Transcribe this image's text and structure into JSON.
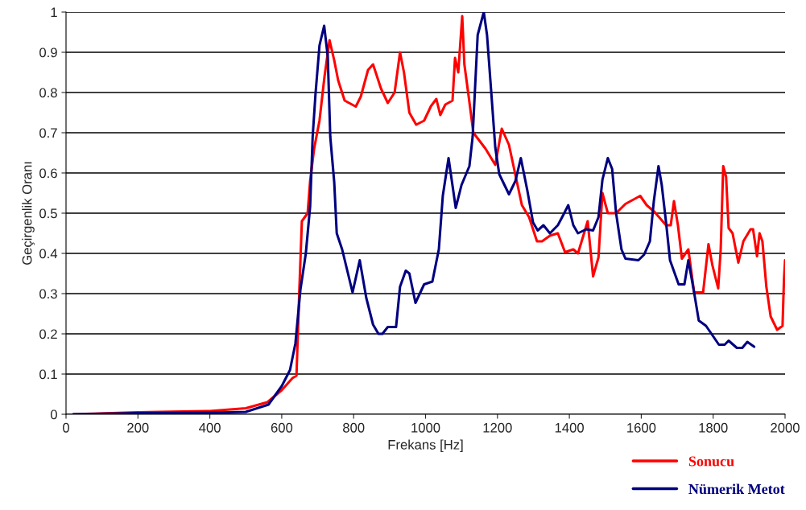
{
  "chart_data": {
    "type": "line",
    "xlabel": "Frekans [Hz]",
    "ylabel": "Geçirgenlik Oranı",
    "xlim": [
      0,
      2000
    ],
    "ylim": [
      0,
      1
    ],
    "xticks": [
      0,
      200,
      400,
      600,
      800,
      1000,
      1200,
      1400,
      1600,
      1800,
      2000
    ],
    "yticks": [
      0,
      0.1,
      0.2,
      0.3,
      0.4,
      0.5,
      0.6,
      0.7,
      0.8,
      0.9,
      1
    ],
    "grid": "y",
    "legend": "bottom right",
    "line_style": "solid",
    "marker": "none",
    "series": [
      {
        "name": "Sonucu",
        "color": "#ff0000",
        "x": [
          20,
          200,
          400,
          500,
          520,
          560,
          600,
          630,
          641,
          649,
          656,
          672,
          679,
          690,
          705,
          719,
          733,
          746,
          757,
          775,
          806,
          820,
          840,
          854,
          876,
          895,
          914,
          929,
          940,
          955,
          974,
          996,
          1015,
          1030,
          1041,
          1055,
          1075,
          1082,
          1091,
          1102,
          1108,
          1120,
          1133,
          1167,
          1194,
          1212,
          1232,
          1268,
          1288,
          1310,
          1324,
          1346,
          1368,
          1388,
          1411,
          1424,
          1451,
          1466,
          1481,
          1492,
          1507,
          1530,
          1556,
          1597,
          1615,
          1637,
          1669,
          1682,
          1691,
          1702,
          1713,
          1731,
          1747,
          1772,
          1787,
          1798,
          1814,
          1821,
          1828,
          1836,
          1843,
          1854,
          1870,
          1884,
          1904,
          1911,
          1922,
          1929,
          1937,
          1948,
          1960,
          1978,
          1993,
          1997,
          2000
        ],
        "values": [
          0,
          0.005,
          0.008,
          0.015,
          0.02,
          0.03,
          0.06,
          0.09,
          0.096,
          0.31,
          0.48,
          0.5,
          0.58,
          0.66,
          0.73,
          0.84,
          0.93,
          0.88,
          0.83,
          0.78,
          0.765,
          0.79,
          0.856,
          0.87,
          0.81,
          0.774,
          0.8,
          0.9,
          0.85,
          0.75,
          0.72,
          0.73,
          0.766,
          0.784,
          0.744,
          0.77,
          0.78,
          0.886,
          0.85,
          0.99,
          0.87,
          0.79,
          0.7,
          0.66,
          0.62,
          0.71,
          0.67,
          0.52,
          0.49,
          0.43,
          0.43,
          0.444,
          0.45,
          0.403,
          0.41,
          0.4,
          0.48,
          0.343,
          0.39,
          0.55,
          0.5,
          0.5,
          0.523,
          0.543,
          0.52,
          0.503,
          0.47,
          0.47,
          0.53,
          0.47,
          0.387,
          0.41,
          0.303,
          0.303,
          0.423,
          0.37,
          0.313,
          0.41,
          0.617,
          0.59,
          0.463,
          0.45,
          0.377,
          0.43,
          0.46,
          0.46,
          0.393,
          0.45,
          0.43,
          0.317,
          0.243,
          0.21,
          0.22,
          0.337,
          0.383
        ]
      },
      {
        "name": "Nümerik Metot",
        "color": "#000080",
        "x": [
          20,
          200,
          400,
          500,
          563,
          600,
          623,
          638,
          652,
          667,
          679,
          686,
          694,
          705,
          718,
          728,
          735,
          746,
          753,
          768,
          797,
          817,
          835,
          854,
          869,
          880,
          895,
          918,
          929,
          945,
          955,
          972,
          996,
          1019,
          1037,
          1048,
          1064,
          1084,
          1100,
          1122,
          1131,
          1145,
          1162,
          1171,
          1182,
          1194,
          1205,
          1232,
          1250,
          1265,
          1283,
          1299,
          1312,
          1328,
          1346,
          1368,
          1384,
          1397,
          1411,
          1424,
          1447,
          1466,
          1481,
          1492,
          1507,
          1519,
          1530,
          1545,
          1556,
          1592,
          1608,
          1624,
          1635,
          1648,
          1657,
          1669,
          1680,
          1704,
          1720,
          1731,
          1747,
          1760,
          1780,
          1816,
          1832,
          1843,
          1866,
          1881,
          1895,
          1914
        ],
        "values": [
          0,
          0.003,
          0.004,
          0.006,
          0.024,
          0.07,
          0.11,
          0.176,
          0.31,
          0.4,
          0.517,
          0.69,
          0.797,
          0.917,
          0.966,
          0.89,
          0.69,
          0.577,
          0.45,
          0.41,
          0.303,
          0.383,
          0.29,
          0.223,
          0.2,
          0.2,
          0.217,
          0.217,
          0.317,
          0.357,
          0.35,
          0.277,
          0.323,
          0.33,
          0.41,
          0.543,
          0.637,
          0.513,
          0.57,
          0.617,
          0.69,
          0.943,
          1.0,
          0.943,
          0.81,
          0.663,
          0.597,
          0.547,
          0.58,
          0.637,
          0.557,
          0.477,
          0.457,
          0.47,
          0.45,
          0.47,
          0.497,
          0.52,
          0.47,
          0.45,
          0.46,
          0.457,
          0.49,
          0.583,
          0.637,
          0.61,
          0.5,
          0.41,
          0.387,
          0.383,
          0.397,
          0.43,
          0.53,
          0.617,
          0.57,
          0.477,
          0.383,
          0.323,
          0.323,
          0.383,
          0.303,
          0.233,
          0.22,
          0.173,
          0.173,
          0.183,
          0.165,
          0.165,
          0.18,
          0.168
        ]
      }
    ]
  }
}
